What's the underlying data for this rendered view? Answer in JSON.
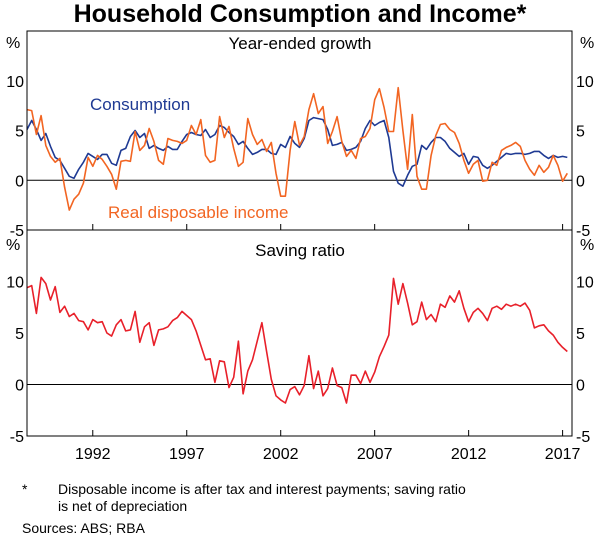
{
  "title": "Household Consumption and Income*",
  "chart_data": [
    {
      "type": "line",
      "title": "Year-ended growth",
      "ylabel": "%",
      "ylim": [
        -5,
        15
      ],
      "yticks": [
        "-5",
        "0",
        "5",
        "10"
      ],
      "xlim": [
        1988.5,
        2017.5
      ],
      "xticks": [
        1992,
        1997,
        2002,
        2007,
        2012,
        2017
      ],
      "xtick_labels": [
        "1992",
        "1997",
        "2002",
        "2007",
        "2012",
        "2017"
      ],
      "colors": {
        "consumption": "#1f3a93",
        "income": "#f26522"
      },
      "series": [
        {
          "name": "Consumption",
          "x": [
            1988.5,
            1988.75,
            1989,
            1989.25,
            1989.5,
            1989.75,
            1990,
            1990.25,
            1990.5,
            1990.75,
            1991,
            1991.25,
            1991.5,
            1991.75,
            1992,
            1992.25,
            1992.5,
            1992.75,
            1993,
            1993.25,
            1993.5,
            1993.75,
            1994,
            1994.25,
            1994.5,
            1994.75,
            1995,
            1995.25,
            1995.5,
            1995.75,
            1996,
            1996.25,
            1996.5,
            1996.75,
            1997,
            1997.25,
            1997.5,
            1997.75,
            1998,
            1998.25,
            1998.5,
            1998.75,
            1999,
            1999.25,
            1999.5,
            1999.75,
            2000,
            2000.25,
            2000.5,
            2000.75,
            2001,
            2001.25,
            2001.5,
            2001.75,
            2002,
            2002.25,
            2002.5,
            2002.75,
            2003,
            2003.25,
            2003.5,
            2003.75,
            2004,
            2004.25,
            2004.5,
            2004.75,
            2005,
            2005.25,
            2005.5,
            2005.75,
            2006,
            2006.25,
            2006.5,
            2006.75,
            2007,
            2007.25,
            2007.5,
            2007.75,
            2008,
            2008.25,
            2008.5,
            2008.75,
            2009,
            2009.25,
            2009.5,
            2009.75,
            2010,
            2010.25,
            2010.5,
            2010.75,
            2011,
            2011.25,
            2011.5,
            2011.75,
            2012,
            2012.25,
            2012.5,
            2012.75,
            2013,
            2013.25,
            2013.5,
            2013.75,
            2014,
            2014.25,
            2014.5,
            2014.75,
            2015,
            2015.25,
            2015.5,
            2015.75,
            2016,
            2016.25,
            2016.5,
            2016.75,
            2017,
            2017.25
          ],
          "values": [
            5.1,
            6.0,
            5.1,
            4.0,
            4.7,
            3.4,
            2.3,
            2.0,
            1.2,
            0.4,
            0.2,
            1.1,
            1.8,
            2.7,
            2.4,
            2.1,
            2.6,
            2.6,
            1.7,
            1.5,
            3.0,
            3.2,
            4.4,
            5.0,
            4.3,
            4.7,
            3.2,
            3.5,
            3.2,
            3.0,
            3.4,
            3.1,
            3.1,
            3.9,
            4.6,
            4.8,
            4.6,
            4.5,
            5.1,
            4.3,
            4.6,
            5.5,
            5.3,
            4.8,
            4.4,
            3.6,
            3.9,
            3.2,
            2.6,
            2.8,
            3.1,
            3.1,
            2.7,
            2.6,
            3.6,
            3.3,
            4.4,
            3.7,
            3.3,
            4.2,
            6.0,
            6.3,
            6.2,
            6.1,
            5.1,
            3.5,
            3.6,
            3.8,
            3.0,
            3.1,
            3.3,
            3.9,
            5.2,
            6.0,
            5.5,
            5.8,
            6.0,
            4.3,
            0.9,
            -0.3,
            -0.6,
            0.5,
            1.4,
            1.6,
            3.5,
            3.1,
            3.8,
            4.3,
            4.3,
            3.9,
            3.2,
            2.8,
            2.4,
            2.7,
            1.6,
            2.4,
            2.3,
            1.5,
            1.2,
            1.5,
            1.9,
            2.3,
            2.7,
            2.6,
            2.7,
            2.7,
            2.6,
            2.7,
            2.9,
            2.9,
            2.5,
            2.2,
            2.5,
            2.3,
            2.4,
            2.3
          ]
        },
        {
          "name": "Real disposable income",
          "x": [
            1988.5,
            1988.75,
            1989,
            1989.25,
            1989.5,
            1989.75,
            1990,
            1990.25,
            1990.5,
            1990.75,
            1991,
            1991.25,
            1991.5,
            1991.75,
            1992,
            1992.25,
            1992.5,
            1992.75,
            1993,
            1993.25,
            1993.5,
            1993.75,
            1994,
            1994.25,
            1994.5,
            1994.75,
            1995,
            1995.25,
            1995.5,
            1995.75,
            1996,
            1996.25,
            1996.5,
            1996.75,
            1997,
            1997.25,
            1997.5,
            1997.75,
            1998,
            1998.25,
            1998.5,
            1998.75,
            1999,
            1999.25,
            1999.5,
            1999.75,
            2000,
            2000.25,
            2000.5,
            2000.75,
            2001,
            2001.25,
            2001.5,
            2001.75,
            2002,
            2002.25,
            2002.5,
            2002.75,
            2003,
            2003.25,
            2003.5,
            2003.75,
            2004,
            2004.25,
            2004.5,
            2004.75,
            2005,
            2005.25,
            2005.5,
            2005.75,
            2006,
            2006.25,
            2006.5,
            2006.75,
            2007,
            2007.25,
            2007.5,
            2007.75,
            2008,
            2008.25,
            2008.5,
            2008.75,
            2009,
            2009.25,
            2009.5,
            2009.75,
            2010,
            2010.25,
            2010.5,
            2010.75,
            2011,
            2011.25,
            2011.5,
            2011.75,
            2012,
            2012.25,
            2012.5,
            2012.75,
            2013,
            2013.25,
            2013.5,
            2013.75,
            2014,
            2014.25,
            2014.5,
            2014.75,
            2015,
            2015.25,
            2015.5,
            2015.75,
            2016,
            2016.25,
            2016.5,
            2016.75,
            2017,
            2017.25
          ],
          "values": [
            7.1,
            7.0,
            4.6,
            6.5,
            3.5,
            2.4,
            1.8,
            2.2,
            -0.7,
            -3.0,
            -1.9,
            -1.4,
            -0.3,
            2.3,
            1.4,
            2.5,
            2.1,
            1.4,
            0.6,
            -0.9,
            1.9,
            2.0,
            1.9,
            4.9,
            3.0,
            3.5,
            5.2,
            3.9,
            2.0,
            1.6,
            4.2,
            4.0,
            3.9,
            3.7,
            4.0,
            5.5,
            4.6,
            6.1,
            2.5,
            1.8,
            2.0,
            6.4,
            4.3,
            5.4,
            3.2,
            1.4,
            1.8,
            6.2,
            4.6,
            3.6,
            4.1,
            2.9,
            3.8,
            0.7,
            -1.6,
            -1.6,
            3.0,
            5.9,
            3.5,
            4.4,
            7.1,
            8.7,
            6.7,
            7.4,
            3.7,
            4.9,
            6.4,
            3.9,
            2.4,
            3.0,
            2.2,
            4.2,
            4.4,
            5.2,
            8.1,
            9.2,
            7.3,
            4.9,
            4.9,
            9.3,
            5.0,
            1.1,
            6.6,
            0.4,
            -0.9,
            -0.9,
            2.5,
            4.5,
            5.6,
            5.7,
            5.1,
            4.8,
            3.7,
            2.0,
            0.7,
            1.6,
            2.0,
            -0.1,
            0.0,
            1.8,
            1.5,
            3.0,
            3.3,
            3.5,
            3.8,
            3.4,
            2.0,
            1.1,
            0.5,
            1.5,
            0.8,
            1.3,
            2.5,
            1.5,
            -0.1,
            0.7
          ]
        }
      ]
    },
    {
      "type": "line",
      "title": "Saving ratio",
      "ylabel": "%",
      "ylim": [
        -5,
        15
      ],
      "yticks": [
        "-5",
        "0",
        "5",
        "10"
      ],
      "xlim": [
        1988.5,
        2017.5
      ],
      "xticks": [
        1992,
        1997,
        2002,
        2007,
        2012,
        2017
      ],
      "xtick_labels": [
        "1992",
        "1997",
        "2002",
        "2007",
        "2012",
        "2017"
      ],
      "colors": {
        "saving": "#e8202a"
      },
      "series": [
        {
          "name": "Saving ratio",
          "x": [
            1988.5,
            1988.75,
            1989,
            1989.25,
            1989.5,
            1989.75,
            1990,
            1990.25,
            1990.5,
            1990.75,
            1991,
            1991.25,
            1991.5,
            1991.75,
            1992,
            1992.25,
            1992.5,
            1992.75,
            1993,
            1993.25,
            1993.5,
            1993.75,
            1994,
            1994.25,
            1994.5,
            1994.75,
            1995,
            1995.25,
            1995.5,
            1995.75,
            1996,
            1996.25,
            1996.5,
            1996.75,
            1997,
            1997.25,
            1997.5,
            1997.75,
            1998,
            1998.25,
            1998.5,
            1998.75,
            1999,
            1999.25,
            1999.5,
            1999.75,
            2000,
            2000.25,
            2000.5,
            2000.75,
            2001,
            2001.25,
            2001.5,
            2001.75,
            2002,
            2002.25,
            2002.5,
            2002.75,
            2003,
            2003.25,
            2003.5,
            2003.75,
            2004,
            2004.25,
            2004.5,
            2004.75,
            2005,
            2005.25,
            2005.5,
            2005.75,
            2006,
            2006.25,
            2006.5,
            2006.75,
            2007,
            2007.25,
            2007.5,
            2007.75,
            2008,
            2008.25,
            2008.5,
            2008.75,
            2009,
            2009.25,
            2009.5,
            2009.75,
            2010,
            2010.25,
            2010.5,
            2010.75,
            2011,
            2011.25,
            2011.5,
            2011.75,
            2012,
            2012.25,
            2012.5,
            2012.75,
            2013,
            2013.25,
            2013.5,
            2013.75,
            2014,
            2014.25,
            2014.5,
            2014.75,
            2015,
            2015.25,
            2015.5,
            2015.75,
            2016,
            2016.25,
            2016.5,
            2016.75,
            2017,
            2017.25
          ],
          "values": [
            9.4,
            9.6,
            6.9,
            10.4,
            9.8,
            8.2,
            9.5,
            7.0,
            7.6,
            6.6,
            6.9,
            6.2,
            6.1,
            5.3,
            6.3,
            6.0,
            6.1,
            5.0,
            4.7,
            5.8,
            6.3,
            5.2,
            5.3,
            7.1,
            4.1,
            5.6,
            6.0,
            3.8,
            5.3,
            5.4,
            5.6,
            6.2,
            6.5,
            7.1,
            6.7,
            6.3,
            5.2,
            3.8,
            2.4,
            2.5,
            0.2,
            2.3,
            2.2,
            -0.3,
            0.7,
            4.2,
            -0.9,
            1.3,
            2.4,
            4.2,
            6.0,
            3.2,
            0.5,
            -1.1,
            -1.5,
            -1.8,
            -0.5,
            -0.2,
            -1.0,
            -0.1,
            2.8,
            -0.4,
            1.3,
            -1.1,
            -0.4,
            1.6,
            -0.1,
            -0.3,
            -1.8,
            0.9,
            0.9,
            0.1,
            1.3,
            0.2,
            1.2,
            2.7,
            3.7,
            4.8,
            10.3,
            7.8,
            9.8,
            7.9,
            5.8,
            6.1,
            8.0,
            6.3,
            6.8,
            6.1,
            7.8,
            7.5,
            8.6,
            8.0,
            9.1,
            7.4,
            6.1,
            7.0,
            7.4,
            6.9,
            6.2,
            7.4,
            7.6,
            7.3,
            7.8,
            7.6,
            7.8,
            7.6,
            7.9,
            7.2,
            5.5,
            5.7,
            5.8,
            5.2,
            4.8,
            4.1,
            3.6,
            3.2
          ]
        }
      ]
    }
  ],
  "labels": {
    "consumption": "Consumption",
    "income": "Real disposable income",
    "percent": "%"
  },
  "footnote": {
    "marker": "*",
    "line1": "Disposable income is after tax and interest payments; saving ratio",
    "line2": "is net of depreciation",
    "sources": "Sources: ABS; RBA"
  }
}
